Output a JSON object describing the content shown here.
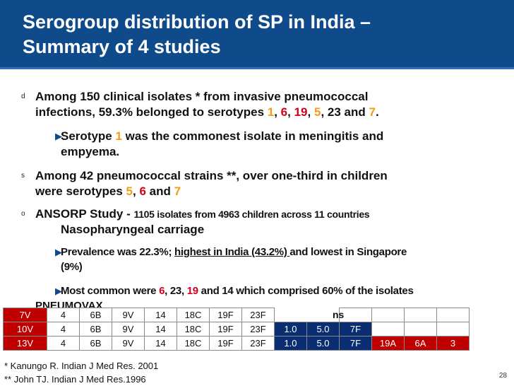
{
  "title": {
    "line1": "Serogroup distribution of SP in India –",
    "line2": "Summary of 4 studies"
  },
  "bullets": {
    "b1_marker": "d",
    "b1_a": "Among 150 clinical isolates * from invasive pneumococcal",
    "b1_b": "infections, 59.3% belonged to serotypes ",
    "b1_1": "1",
    "b1_6": "6",
    "b1_19": "19",
    "b1_5": "5",
    "b1_mid": ", 23 and ",
    "b1_7": "7",
    "sub1_a": "Serotype ",
    "sub1_1": "1",
    "sub1_b": " was the commonest isolate in meningitis and",
    "sub1_c": "empyema.",
    "b2_marker": "s",
    "b2_a": "Among 42 pneumococcal strains **, over one-third in children",
    "b2_b": "were serotypes ",
    "b2_5": "5",
    "b2_6": "6",
    "b2_and": " and ",
    "b2_7": "7",
    "b3_marker": "o",
    "b3_a": "ANSORP Study - ",
    "b3_b": "1105 isolates from 4963 children across 11 countries",
    "b3_c": "Nasopharyngeal carriage",
    "sub2_a": "Prevalence was 22.3%; ",
    "sub2_u": "highest in India (43.2%) ",
    "sub2_b": "and lowest in Singapore",
    "sub2_c": "(9%)",
    "sub3_a": "Most common were ",
    "sub3_6": "6",
    "sub3_b": ", 23, ",
    "sub3_19": "19",
    "sub3_c": " and 14 which comprised 60% of the isolates",
    "partial": "PNEUMOVAX"
  },
  "table": {
    "ins_text": "ns",
    "rows": [
      {
        "label": "7V",
        "cells": [
          "4",
          "6B",
          "9V",
          "14",
          "18C",
          "19F",
          "23F",
          "",
          "",
          "",
          "",
          "",
          ""
        ]
      },
      {
        "label": "10V",
        "cells": [
          "4",
          "6B",
          "9V",
          "14",
          "18C",
          "19F",
          "23F",
          "1.0",
          "5.0",
          "7F",
          "",
          "",
          ""
        ]
      },
      {
        "label": "13V",
        "cells": [
          "4",
          "6B",
          "9V",
          "14",
          "18C",
          "19F",
          "23F",
          "1.0",
          "5.0",
          "7F",
          "19A",
          "6A",
          "3"
        ]
      }
    ]
  },
  "footnotes": {
    "f1": "* Kanungo R. Indian J Med Res. 2001",
    "f2": "** John TJ. Indian J Med Res.1996"
  },
  "page_number": "28",
  "colors": {
    "brand_blue": "#0f4a8a",
    "accent_orange": "#f39c12",
    "accent_red": "#d0021b"
  }
}
